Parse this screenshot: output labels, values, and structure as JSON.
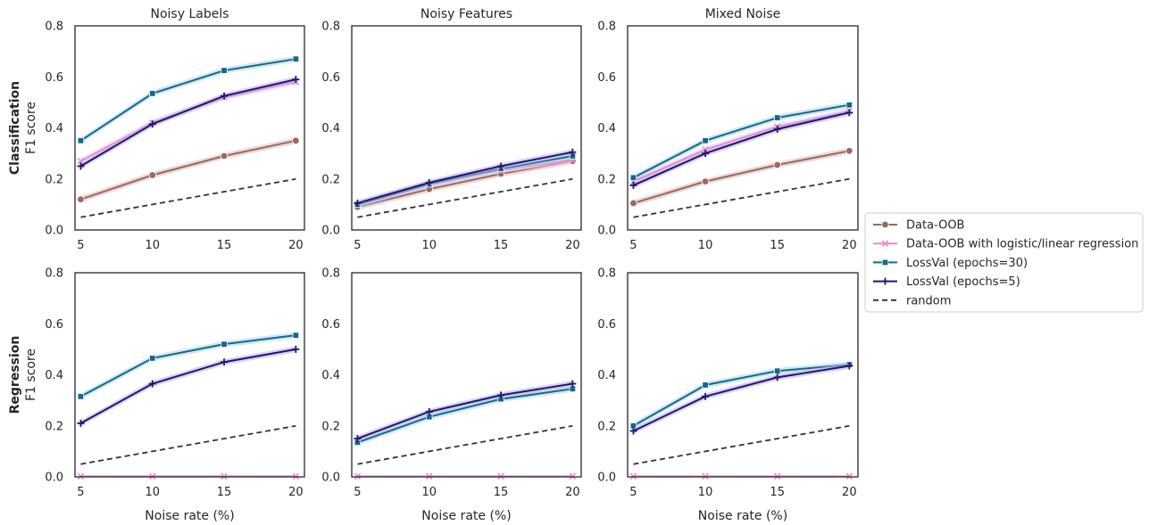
{
  "chart_data": {
    "type": "line",
    "rows": [
      "Classification",
      "Regression"
    ],
    "columns": [
      "Noisy Labels",
      "Noisy Features",
      "Mixed Noise"
    ],
    "ylabel": "F1 score",
    "xlabel": "Noise rate (%)",
    "x": [
      5,
      10,
      15,
      20
    ],
    "x_ticks": [
      "5",
      "10",
      "15",
      "20"
    ],
    "ylim": [
      0,
      0.8
    ],
    "y_ticks": [
      "0.0",
      "0.2",
      "0.4",
      "0.6",
      "0.8"
    ],
    "grid": false,
    "legend_position": "right",
    "series_styles": [
      {
        "name": "Data-OOB",
        "color": "#9c675e",
        "marker": "circle"
      },
      {
        "name": "Data-OOB with logistic/linear regression",
        "color": "#e88ad0",
        "marker": "x"
      },
      {
        "name": "LossVal (epochs=30)",
        "color": "#10698c",
        "marker": "square"
      },
      {
        "name": "LossVal (epochs=5)",
        "color": "#221470",
        "marker": "plus"
      },
      {
        "name": "random",
        "color": "#333333",
        "marker": "none",
        "dashed": true
      }
    ],
    "panels": [
      {
        "row": "Classification",
        "column": "Noisy Labels",
        "series": [
          {
            "name": "Data-OOB",
            "values": [
              0.12,
              0.215,
              0.29,
              0.35
            ]
          },
          {
            "name": "Data-OOB with logistic/linear regression",
            "values": [
              0.27,
              0.42,
              0.52,
              0.58
            ]
          },
          {
            "name": "LossVal (epochs=30)",
            "values": [
              0.35,
              0.535,
              0.625,
              0.67
            ]
          },
          {
            "name": "LossVal (epochs=5)",
            "values": [
              0.25,
              0.415,
              0.525,
              0.59
            ]
          },
          {
            "name": "random",
            "values": [
              0.05,
              0.1,
              0.15,
              0.2
            ]
          }
        ]
      },
      {
        "row": "Classification",
        "column": "Noisy Features",
        "series": [
          {
            "name": "Data-OOB",
            "values": [
              0.09,
              0.16,
              0.22,
              0.27
            ]
          },
          {
            "name": "Data-OOB with logistic/linear regression",
            "values": [
              0.1,
              0.18,
              0.235,
              0.275
            ]
          },
          {
            "name": "LossVal (epochs=30)",
            "values": [
              0.1,
              0.18,
              0.24,
              0.29
            ]
          },
          {
            "name": "LossVal (epochs=5)",
            "values": [
              0.105,
              0.185,
              0.25,
              0.305
            ]
          },
          {
            "name": "random",
            "values": [
              0.05,
              0.1,
              0.15,
              0.2
            ]
          }
        ]
      },
      {
        "row": "Classification",
        "column": "Mixed Noise",
        "series": [
          {
            "name": "Data-OOB",
            "values": [
              0.105,
              0.19,
              0.255,
              0.31
            ]
          },
          {
            "name": "Data-OOB with logistic/linear regression",
            "values": [
              0.19,
              0.315,
              0.405,
              0.465
            ]
          },
          {
            "name": "LossVal (epochs=30)",
            "values": [
              0.205,
              0.35,
              0.44,
              0.49
            ]
          },
          {
            "name": "LossVal (epochs=5)",
            "values": [
              0.175,
              0.3,
              0.395,
              0.46
            ]
          },
          {
            "name": "random",
            "values": [
              0.05,
              0.1,
              0.15,
              0.2
            ]
          }
        ]
      },
      {
        "row": "Regression",
        "column": "Noisy Labels",
        "series": [
          {
            "name": "Data-OOB with logistic/linear regression",
            "values": [
              0.002,
              0.002,
              0.002,
              0.002
            ]
          },
          {
            "name": "LossVal (epochs=30)",
            "values": [
              0.315,
              0.465,
              0.52,
              0.555
            ]
          },
          {
            "name": "LossVal (epochs=5)",
            "values": [
              0.21,
              0.365,
              0.45,
              0.5
            ]
          },
          {
            "name": "random",
            "values": [
              0.05,
              0.1,
              0.15,
              0.2
            ]
          }
        ]
      },
      {
        "row": "Regression",
        "column": "Noisy Features",
        "series": [
          {
            "name": "Data-OOB with logistic/linear regression",
            "values": [
              0.002,
              0.002,
              0.002,
              0.002
            ]
          },
          {
            "name": "LossVal (epochs=30)",
            "values": [
              0.135,
              0.235,
              0.305,
              0.345
            ]
          },
          {
            "name": "LossVal (epochs=5)",
            "values": [
              0.15,
              0.255,
              0.32,
              0.365
            ]
          },
          {
            "name": "random",
            "values": [
              0.05,
              0.1,
              0.15,
              0.2
            ]
          }
        ]
      },
      {
        "row": "Regression",
        "column": "Mixed Noise",
        "series": [
          {
            "name": "Data-OOB with logistic/linear regression",
            "values": [
              0.002,
              0.002,
              0.002,
              0.002
            ]
          },
          {
            "name": "LossVal (epochs=30)",
            "values": [
              0.2,
              0.36,
              0.415,
              0.44
            ]
          },
          {
            "name": "LossVal (epochs=5)",
            "values": [
              0.18,
              0.315,
              0.39,
              0.435
            ]
          },
          {
            "name": "random",
            "values": [
              0.05,
              0.1,
              0.15,
              0.2
            ]
          }
        ]
      }
    ]
  }
}
